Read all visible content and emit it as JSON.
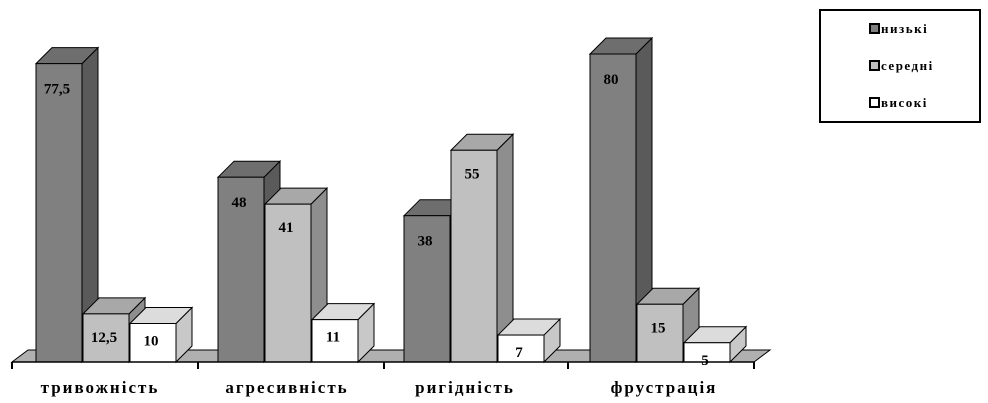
{
  "chart_data": {
    "type": "bar",
    "categories": [
      "тривожність",
      "агресивність",
      "ригідність",
      "фрустрація"
    ],
    "series": [
      {
        "name": "низькі",
        "values": [
          77.5,
          48,
          38,
          80
        ],
        "labels": [
          "77,5",
          "48",
          "38",
          "80"
        ],
        "color": "#808080",
        "side": "#5a5a5a",
        "top": "#6e6e6e"
      },
      {
        "name": "середні",
        "values": [
          12.5,
          41,
          55,
          15
        ],
        "labels": [
          "12,5",
          "41",
          "55",
          "15"
        ],
        "color": "#c0c0c0",
        "side": "#8e8e8e",
        "top": "#a8a8a8"
      },
      {
        "name": "високі",
        "values": [
          10,
          11,
          7,
          5
        ],
        "labels": [
          "10",
          "11",
          "7",
          "5"
        ],
        "color": "#ffffff",
        "side": "#c8c8c8",
        "top": "#dcdcdc"
      }
    ],
    "title": "",
    "xlabel": "",
    "ylabel": "",
    "ylim": [
      0,
      100
    ],
    "grid": false,
    "legend": "top-right",
    "style": "3d"
  }
}
